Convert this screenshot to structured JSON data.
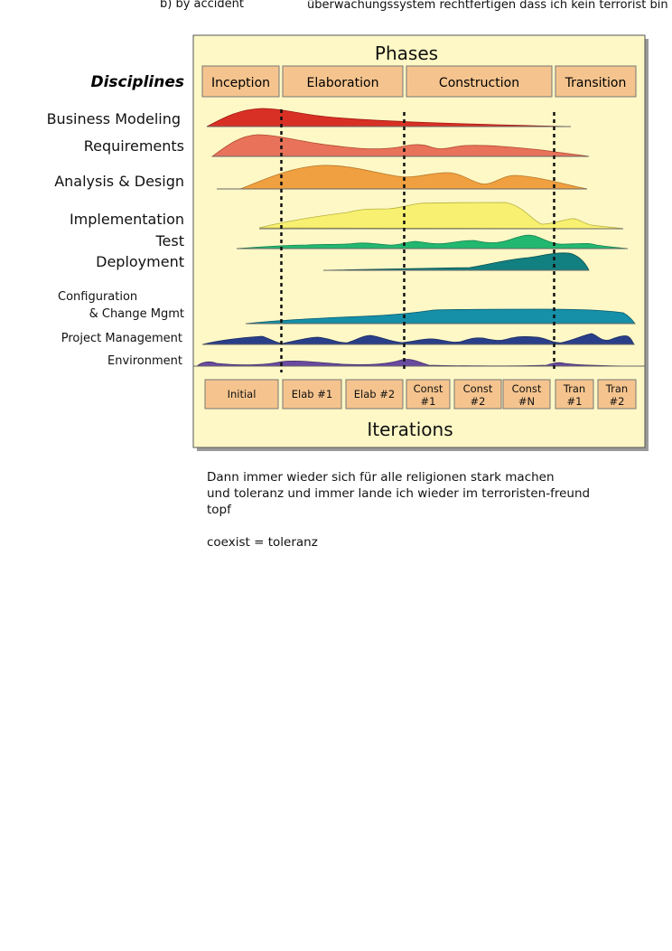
{
  "top_fragments": {
    "left": "b) by accident",
    "right": "überwachungssystem rechtfertigen dass ich kein terrorist bin"
  },
  "diagram": {
    "title": "Phases",
    "disciplines_label": "Disciplines",
    "phases": [
      "Inception",
      "Elaboration",
      "Construction",
      "Transition"
    ],
    "disciplines": [
      {
        "name": "Business Modeling",
        "color": "#d93025"
      },
      {
        "name": "Requirements",
        "color": "#e8735a"
      },
      {
        "name": "Analysis & Design",
        "color": "#f0a040"
      },
      {
        "name": "Implementation",
        "color": "#f8f070"
      },
      {
        "name": "Test",
        "color": "#22b870"
      },
      {
        "name": "Deployment",
        "color": "#128080"
      },
      {
        "name": "Configuration",
        "color": "#1590a8"
      },
      {
        "name": "& Change Mgmt",
        "color": "#1590a8"
      },
      {
        "name": "Project Management",
        "color": "#2a3f8a"
      },
      {
        "name": "Environment",
        "color": "#6a4aa0"
      }
    ],
    "iterations": [
      {
        "line1": "Initial",
        "line2": ""
      },
      {
        "line1": "Elab #1",
        "line2": ""
      },
      {
        "line1": "Elab #2",
        "line2": ""
      },
      {
        "line1": "Const",
        "line2": "#1"
      },
      {
        "line1": "Const",
        "line2": "#2"
      },
      {
        "line1": "Const",
        "line2": "#N"
      },
      {
        "line1": "Tran",
        "line2": "#1"
      },
      {
        "line1": "Tran",
        "line2": "#2"
      }
    ],
    "iterations_label": "Iterations",
    "colors": {
      "panel": "#fdf8c6",
      "box": "#f5c48e",
      "border": "#555555"
    }
  },
  "bottom_text": {
    "line1": "Dann immer wieder sich für alle religionen stark machen",
    "line2": "und toleranz und immer lande ich wieder im terroristen-freund",
    "line3": "topf",
    "line4": "coexist = toleranz"
  }
}
